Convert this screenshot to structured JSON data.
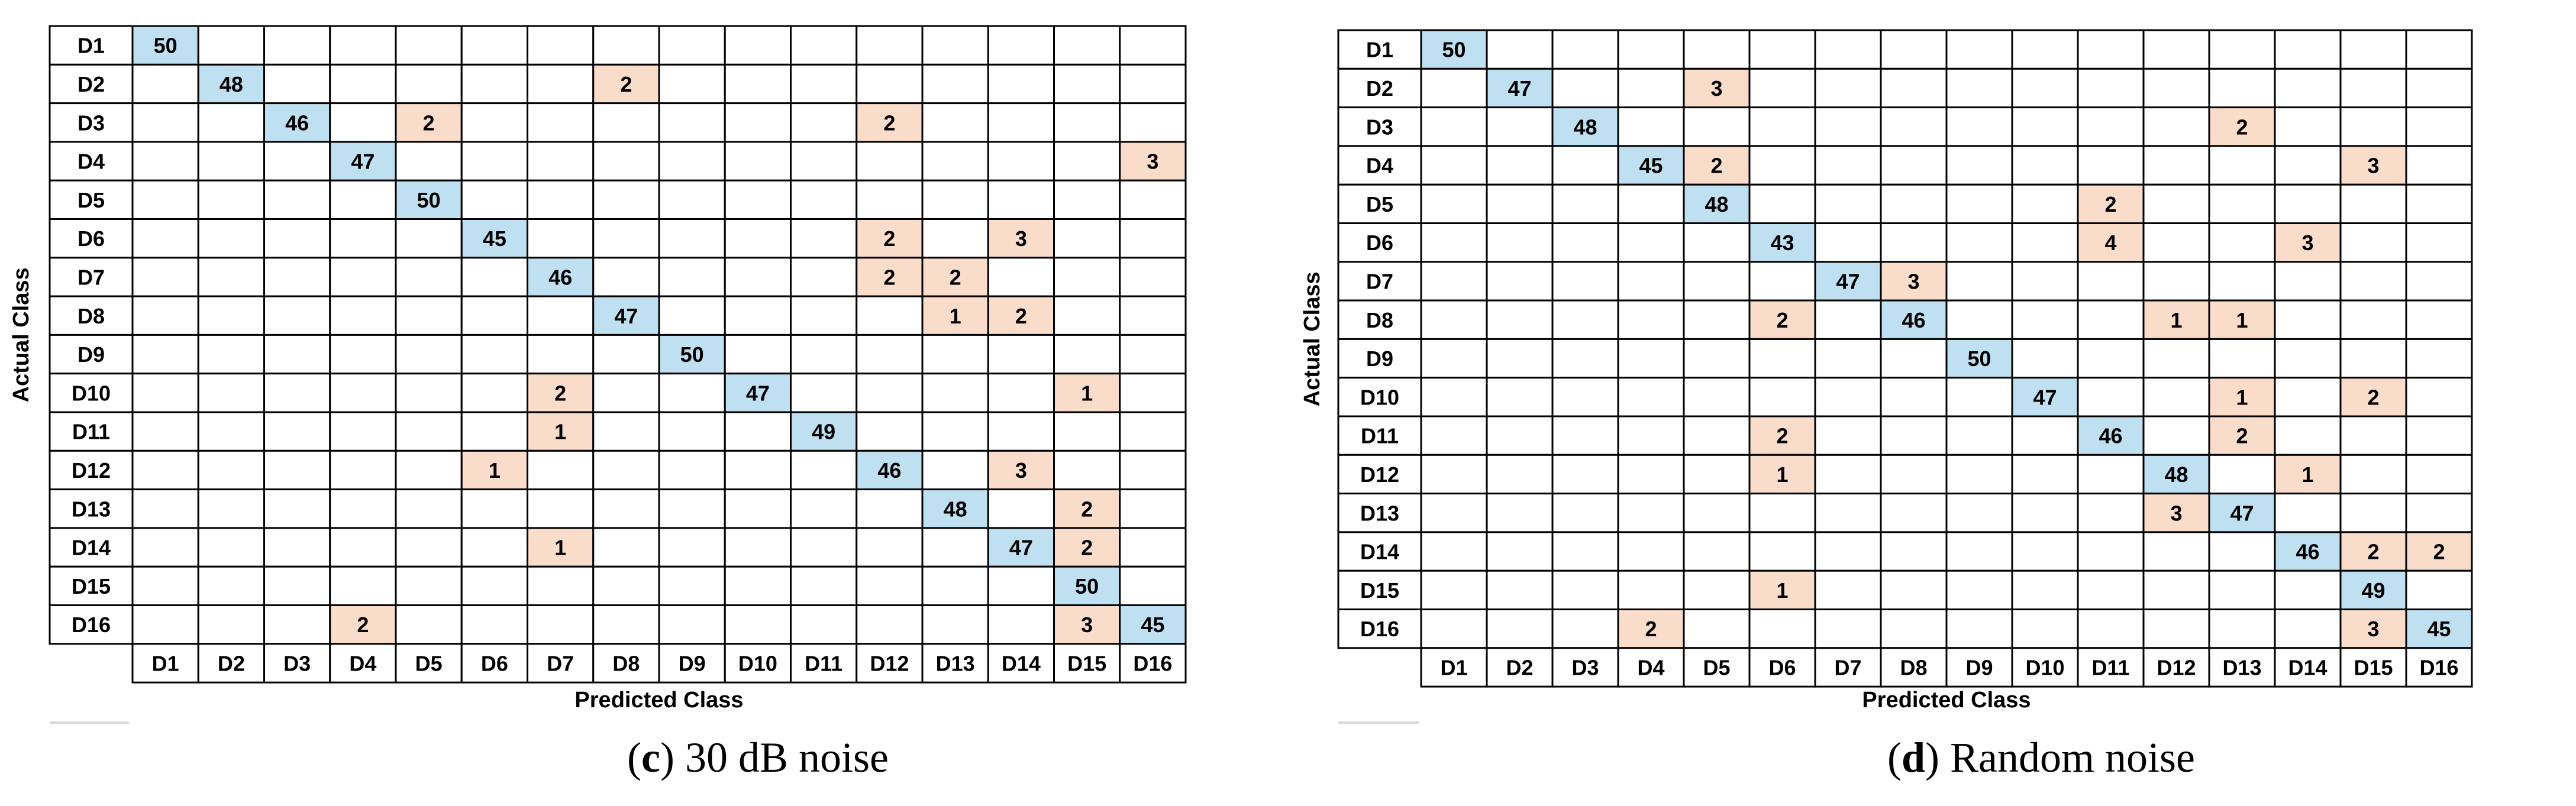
{
  "colors": {
    "diagonal": "#bfe0f0",
    "off_diagonal": "#fadccb",
    "grid": "#000000",
    "caption_rule": "#d9d9d9"
  },
  "chart_data": [
    {
      "type": "heatmap",
      "caption_letter": "c",
      "caption_text": " 30 dB noise",
      "xlabel": "Predicted Class",
      "ylabel": "Actual Class",
      "row_labels": [
        "D1",
        "D2",
        "D3",
        "D4",
        "D5",
        "D6",
        "D7",
        "D8",
        "D9",
        "D10",
        "D11",
        "D12",
        "D13",
        "D14",
        "D15",
        "D16"
      ],
      "col_labels": [
        "D1",
        "D2",
        "D3",
        "D4",
        "D5",
        "D6",
        "D7",
        "D8",
        "D9",
        "D10",
        "D11",
        "D12",
        "D13",
        "D14",
        "D15",
        "D16"
      ],
      "matrix": [
        [
          50,
          0,
          0,
          0,
          0,
          0,
          0,
          0,
          0,
          0,
          0,
          0,
          0,
          0,
          0,
          0
        ],
        [
          0,
          48,
          0,
          0,
          0,
          0,
          0,
          2,
          0,
          0,
          0,
          0,
          0,
          0,
          0,
          0
        ],
        [
          0,
          0,
          46,
          0,
          2,
          0,
          0,
          0,
          0,
          0,
          0,
          2,
          0,
          0,
          0,
          0
        ],
        [
          0,
          0,
          0,
          47,
          0,
          0,
          0,
          0,
          0,
          0,
          0,
          0,
          0,
          0,
          0,
          3
        ],
        [
          0,
          0,
          0,
          0,
          50,
          0,
          0,
          0,
          0,
          0,
          0,
          0,
          0,
          0,
          0,
          0
        ],
        [
          0,
          0,
          0,
          0,
          0,
          45,
          0,
          0,
          0,
          0,
          0,
          2,
          0,
          3,
          0,
          0
        ],
        [
          0,
          0,
          0,
          0,
          0,
          0,
          46,
          0,
          0,
          0,
          0,
          2,
          2,
          0,
          0,
          0
        ],
        [
          0,
          0,
          0,
          0,
          0,
          0,
          0,
          47,
          0,
          0,
          0,
          0,
          1,
          2,
          0,
          0
        ],
        [
          0,
          0,
          0,
          0,
          0,
          0,
          0,
          0,
          50,
          0,
          0,
          0,
          0,
          0,
          0,
          0
        ],
        [
          0,
          0,
          0,
          0,
          0,
          0,
          2,
          0,
          0,
          47,
          0,
          0,
          0,
          0,
          1,
          0
        ],
        [
          0,
          0,
          0,
          0,
          0,
          0,
          1,
          0,
          0,
          0,
          49,
          0,
          0,
          0,
          0,
          0
        ],
        [
          0,
          0,
          0,
          0,
          0,
          1,
          0,
          0,
          0,
          0,
          0,
          46,
          0,
          3,
          0,
          0
        ],
        [
          0,
          0,
          0,
          0,
          0,
          0,
          0,
          0,
          0,
          0,
          0,
          0,
          48,
          0,
          2,
          0
        ],
        [
          0,
          0,
          0,
          0,
          0,
          0,
          1,
          0,
          0,
          0,
          0,
          0,
          0,
          47,
          2,
          0
        ],
        [
          0,
          0,
          0,
          0,
          0,
          0,
          0,
          0,
          0,
          0,
          0,
          0,
          0,
          0,
          50,
          0
        ],
        [
          0,
          0,
          0,
          2,
          0,
          0,
          0,
          0,
          0,
          0,
          0,
          0,
          0,
          0,
          3,
          45
        ]
      ]
    },
    {
      "type": "heatmap",
      "caption_letter": "d",
      "caption_text": " Random noise",
      "xlabel": "Predicted Class",
      "ylabel": "Actual Class",
      "row_labels": [
        "D1",
        "D2",
        "D3",
        "D4",
        "D5",
        "D6",
        "D7",
        "D8",
        "D9",
        "D10",
        "D11",
        "D12",
        "D13",
        "D14",
        "D15",
        "D16"
      ],
      "col_labels": [
        "D1",
        "D2",
        "D3",
        "D4",
        "D5",
        "D6",
        "D7",
        "D8",
        "D9",
        "D10",
        "D11",
        "D12",
        "D13",
        "D14",
        "D15",
        "D16"
      ],
      "matrix": [
        [
          50,
          0,
          0,
          0,
          0,
          0,
          0,
          0,
          0,
          0,
          0,
          0,
          0,
          0,
          0,
          0
        ],
        [
          0,
          47,
          0,
          0,
          3,
          0,
          0,
          0,
          0,
          0,
          0,
          0,
          0,
          0,
          0,
          0
        ],
        [
          0,
          0,
          48,
          0,
          0,
          0,
          0,
          0,
          0,
          0,
          0,
          0,
          2,
          0,
          0,
          0
        ],
        [
          0,
          0,
          0,
          45,
          2,
          0,
          0,
          0,
          0,
          0,
          0,
          0,
          0,
          0,
          3,
          0
        ],
        [
          0,
          0,
          0,
          0,
          48,
          0,
          0,
          0,
          0,
          0,
          2,
          0,
          0,
          0,
          0,
          0
        ],
        [
          0,
          0,
          0,
          0,
          0,
          43,
          0,
          0,
          0,
          0,
          4,
          0,
          0,
          3,
          0,
          0
        ],
        [
          0,
          0,
          0,
          0,
          0,
          0,
          47,
          3,
          0,
          0,
          0,
          0,
          0,
          0,
          0,
          0
        ],
        [
          0,
          0,
          0,
          0,
          0,
          2,
          0,
          46,
          0,
          0,
          0,
          1,
          1,
          0,
          0,
          0
        ],
        [
          0,
          0,
          0,
          0,
          0,
          0,
          0,
          0,
          50,
          0,
          0,
          0,
          0,
          0,
          0,
          0
        ],
        [
          0,
          0,
          0,
          0,
          0,
          0,
          0,
          0,
          0,
          47,
          0,
          0,
          1,
          0,
          2,
          0
        ],
        [
          0,
          0,
          0,
          0,
          0,
          2,
          0,
          0,
          0,
          0,
          46,
          0,
          2,
          0,
          0,
          0
        ],
        [
          0,
          0,
          0,
          0,
          0,
          1,
          0,
          0,
          0,
          0,
          0,
          48,
          0,
          1,
          0,
          0
        ],
        [
          0,
          0,
          0,
          0,
          0,
          0,
          0,
          0,
          0,
          0,
          0,
          3,
          47,
          0,
          0,
          0
        ],
        [
          0,
          0,
          0,
          0,
          0,
          0,
          0,
          0,
          0,
          0,
          0,
          0,
          0,
          46,
          2,
          2
        ],
        [
          0,
          0,
          0,
          0,
          0,
          1,
          0,
          0,
          0,
          0,
          0,
          0,
          0,
          0,
          49,
          0
        ],
        [
          0,
          0,
          0,
          2,
          0,
          0,
          0,
          0,
          0,
          0,
          0,
          0,
          0,
          0,
          3,
          45
        ]
      ]
    }
  ]
}
